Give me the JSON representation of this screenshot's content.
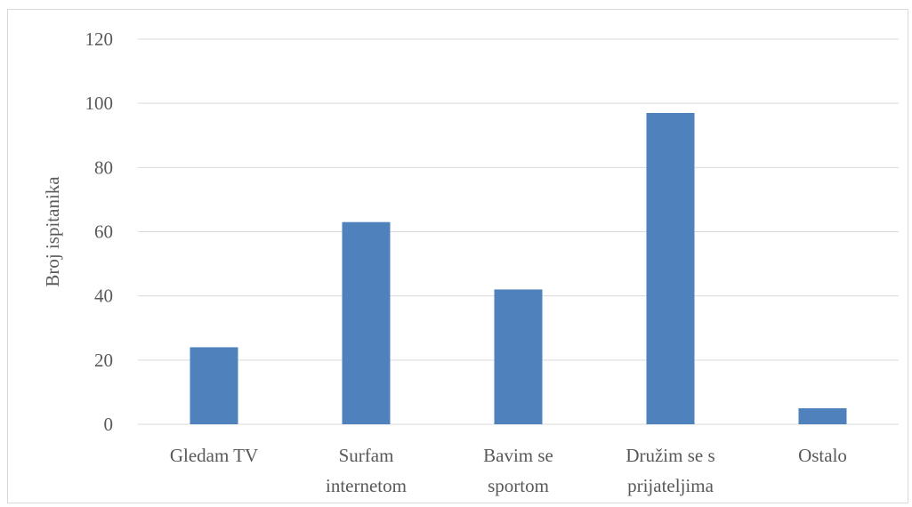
{
  "chart_data": {
    "type": "bar",
    "title": "",
    "xlabel": "",
    "ylabel": "Broj ispitanika",
    "ylim": [
      0,
      120
    ],
    "yticks": [
      0,
      20,
      40,
      60,
      80,
      100,
      120
    ],
    "grid": true,
    "categories": [
      [
        "Gledam TV"
      ],
      [
        "Surfam",
        "internetom"
      ],
      [
        "Bavim se",
        "sportom"
      ],
      [
        "Družim se s",
        "prijateljima"
      ],
      [
        "Ostalo"
      ]
    ],
    "values": [
      24,
      63,
      42,
      97,
      5
    ],
    "bar_color": "#4f81bd"
  }
}
